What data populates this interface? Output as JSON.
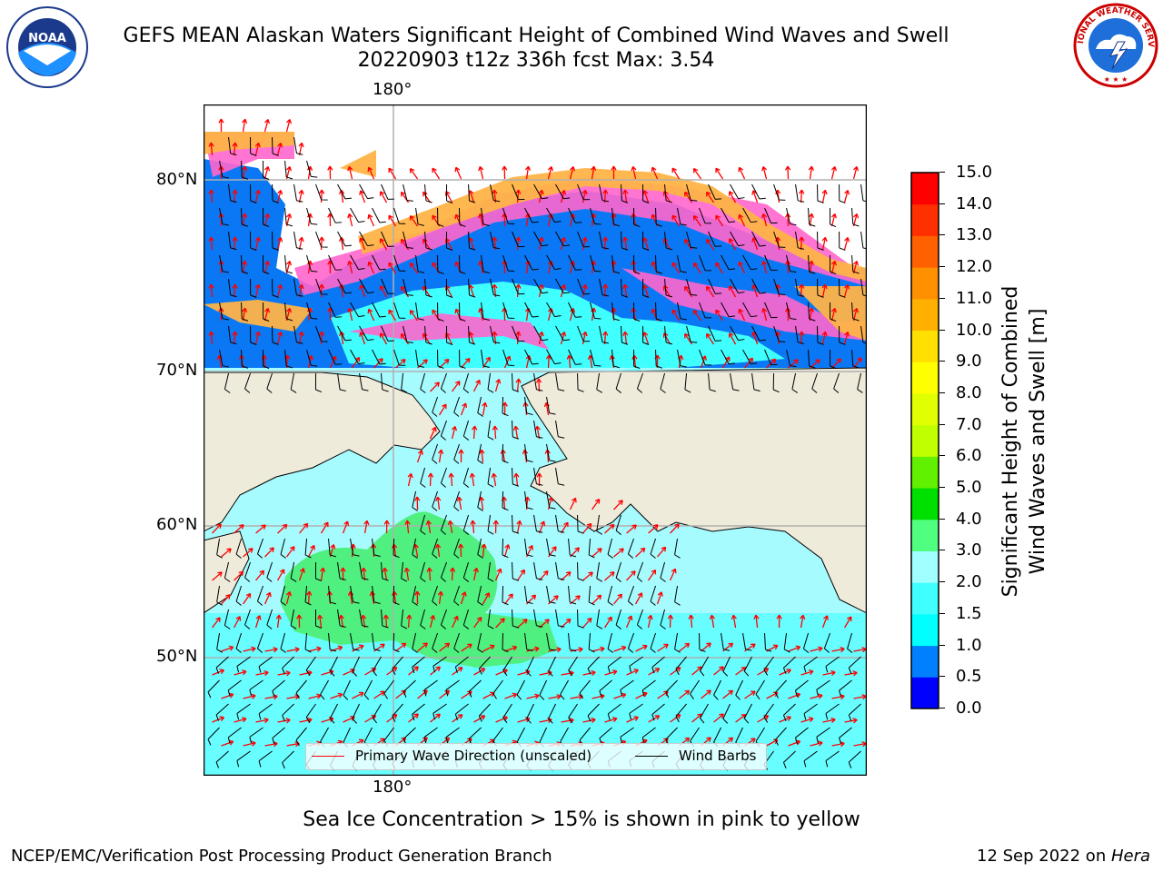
{
  "header": {
    "title_line1": "GEFS MEAN Alaskan Waters Significant Height of Combined Wind Waves and Swell",
    "title_line2": "20220903 t12z 336h fcst   Max: 3.54"
  },
  "logos": {
    "left": {
      "name": "noaa-logo",
      "text": "NOAA",
      "ring_text": "NATIONAL OCEANIC AND ATMOSPHERIC ADMINISTRATION · U.S. DEPARTMENT OF COMMERCE"
    },
    "right": {
      "name": "nws-logo",
      "ring_text": "NATIONAL WEATHER SERVICE"
    }
  },
  "map": {
    "lon_labels": [
      "180°",
      "180°"
    ],
    "lat_labels": [
      "80°N",
      "70°N",
      "60°N",
      "50°N"
    ],
    "colors": {
      "land": "#eeebdb",
      "ocean_low": "#80ffff",
      "ocean_mid": "#40ffff",
      "ocean_high": "#50ee80",
      "ice_pink": "#ff66cc",
      "ice_orange": "#ffaa44",
      "ice_yellow": "#ffee00",
      "deep_blue": "#0080ff",
      "arrow": "#ff0000",
      "barb": "#000000",
      "grid": "#b0b0b0"
    }
  },
  "legend": {
    "wave_direction": "Primary Wave Direction (unscaled)",
    "wind_barbs": "Wind Barbs",
    "wave_color": "#ff0000",
    "barb_color": "#000000"
  },
  "colorbar": {
    "title_line1": "Significant Height of Combined",
    "title_line2": "Wind Waves and Swell [m]",
    "ticks": [
      "0.0",
      "0.5",
      "1.0",
      "1.5",
      "2.0",
      "3.0",
      "4.0",
      "5.0",
      "6.0",
      "7.0",
      "8.0",
      "9.0",
      "10.0",
      "11.0",
      "12.0",
      "13.0",
      "14.0",
      "15.0"
    ],
    "colors": [
      "#0000ff",
      "#0080ff",
      "#00ffff",
      "#40ffff",
      "#a0ffff",
      "#50ff80",
      "#00e000",
      "#60f000",
      "#c0ff00",
      "#e0ff00",
      "#ffff00",
      "#ffe000",
      "#ffb000",
      "#ff9000",
      "#ff6000",
      "#ff3000",
      "#ff0000"
    ]
  },
  "note": "Sea Ice Concentration > 15% is shown in pink to yellow",
  "footer": {
    "left": "NCEP/EMC/Verification Post Processing Product Generation Branch",
    "right_prefix": "12 Sep 2022 on ",
    "right_host": "Hera"
  }
}
